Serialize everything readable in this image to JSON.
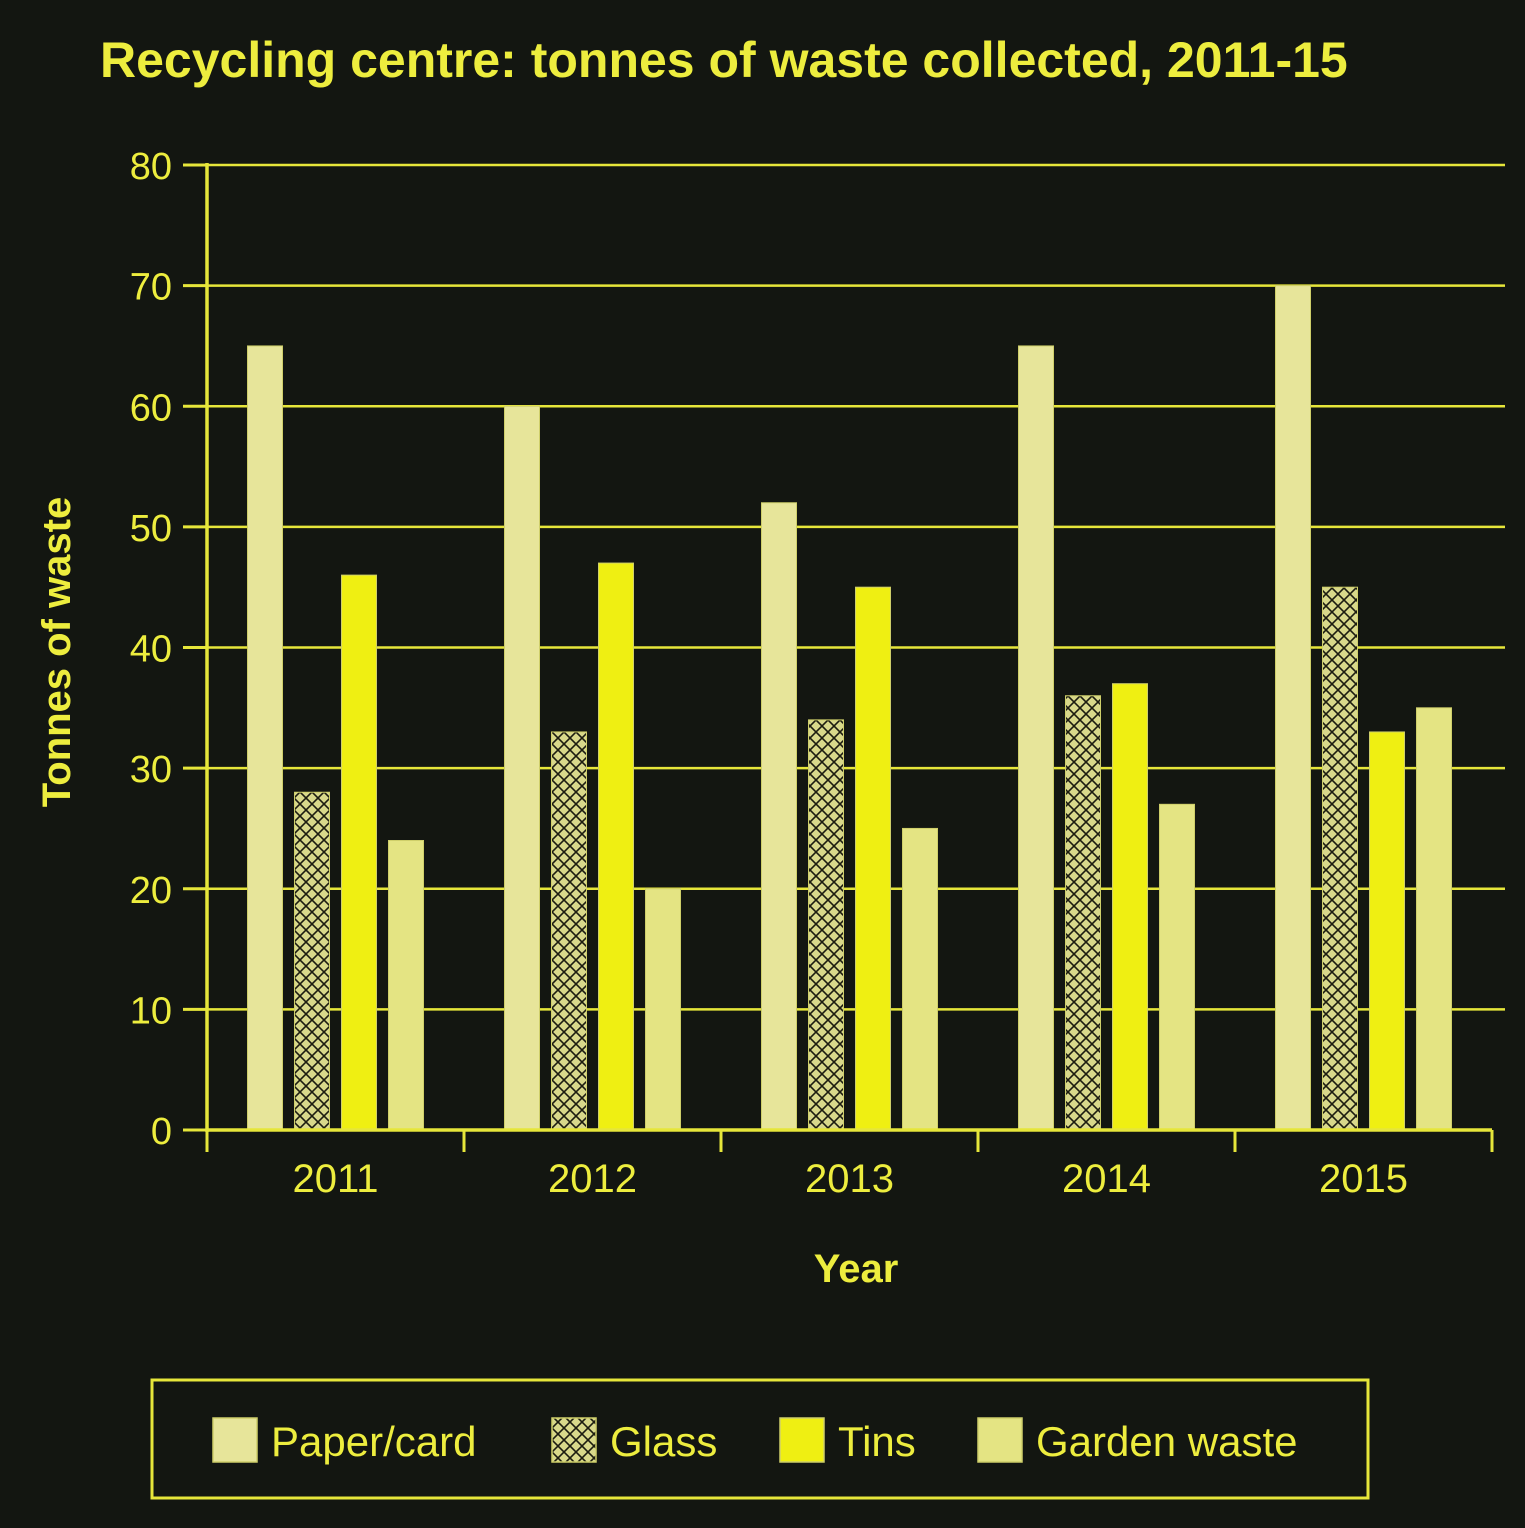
{
  "colors": {
    "background": "#131611",
    "axis": "#e6e63a",
    "text": "#eded3e",
    "paper": "#e7e59a",
    "glass": "#d8d88a",
    "tins": "#efef12",
    "garden": "#e4e483"
  },
  "chart_data": {
    "type": "bar",
    "title": "Recycling centre: tonnes of waste collected, 2011-15",
    "xlabel": "Year",
    "ylabel": "Tonnes of waste",
    "ylim": [
      0,
      80
    ],
    "yticks": [
      "0",
      "10",
      "20",
      "30",
      "40",
      "50",
      "60",
      "70",
      "80"
    ],
    "grid": true,
    "legend_position": "bottom",
    "categories": [
      "2011",
      "2012",
      "2013",
      "2014",
      "2015"
    ],
    "series": [
      {
        "name": "Paper/card",
        "values": [
          65,
          60,
          52,
          65,
          70
        ],
        "pattern": "solid",
        "color": "#e7e59a"
      },
      {
        "name": "Glass",
        "values": [
          28,
          33,
          34,
          36,
          45
        ],
        "pattern": "crosshatch",
        "color": "#d8d88a"
      },
      {
        "name": "Tins",
        "values": [
          46,
          47,
          45,
          37,
          33
        ],
        "pattern": "solid",
        "color": "#efef12"
      },
      {
        "name": "Garden waste",
        "values": [
          24,
          20,
          25,
          27,
          35
        ],
        "pattern": "solid",
        "color": "#e4e483"
      }
    ]
  }
}
